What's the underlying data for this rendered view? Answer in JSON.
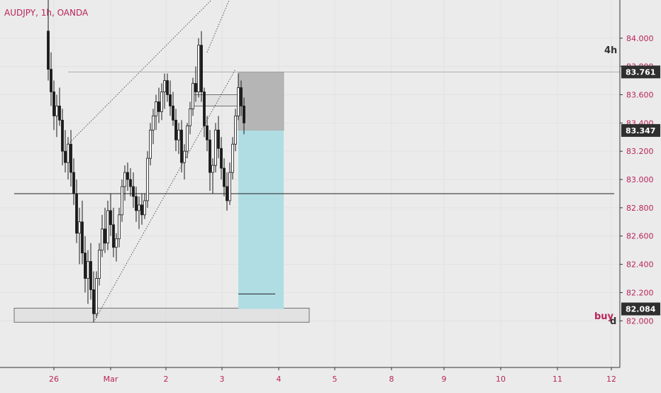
{
  "header": {
    "symbol": "AUDJPY, 1h, OANDA"
  },
  "colors": {
    "background": "#ebebeb",
    "text": "#b8245a",
    "candle": "#1a1a1a",
    "line": "#222222",
    "target_zone": "#b0dde3",
    "stop_zone": "#b5b5b5",
    "label_bg": "#2f2f2f",
    "label_text": "#ffffff"
  },
  "chart_data": {
    "type": "candlestick",
    "x_ticks": [
      "26",
      "Mar",
      "2",
      "3",
      "4",
      "5",
      "8",
      "9",
      "10",
      "11",
      "12"
    ],
    "y_ticks": [
      "84.000",
      "83.800",
      "83.600",
      "83.400",
      "83.200",
      "83.000",
      "82.800",
      "82.600",
      "82.400",
      "82.200",
      "82.000"
    ],
    "ylim": [
      81.67,
      84.27
    ],
    "grid": true,
    "ohlc_hourly": [
      [
        84.05,
        84.3,
        83.7,
        83.78
      ],
      [
        83.78,
        83.9,
        83.52,
        83.62
      ],
      [
        83.62,
        83.7,
        83.35,
        83.45
      ],
      [
        83.45,
        83.6,
        83.3,
        83.52
      ],
      [
        83.52,
        83.65,
        83.38,
        83.42
      ],
      [
        83.42,
        83.5,
        83.1,
        83.2
      ],
      [
        83.2,
        83.35,
        83.05,
        83.12
      ],
      [
        83.12,
        83.3,
        83.0,
        83.25
      ],
      [
        83.25,
        83.35,
        82.95,
        83.05
      ],
      [
        83.05,
        83.15,
        82.82,
        82.9
      ],
      [
        82.9,
        83.0,
        82.55,
        82.62
      ],
      [
        82.62,
        82.8,
        82.4,
        82.7
      ],
      [
        82.7,
        82.85,
        82.4,
        82.48
      ],
      [
        82.48,
        82.6,
        82.2,
        82.3
      ],
      [
        82.3,
        82.5,
        82.12,
        82.42
      ],
      [
        82.42,
        82.55,
        82.15,
        82.22
      ],
      [
        82.22,
        82.35,
        81.99,
        82.05
      ],
      [
        82.05,
        82.35,
        82.02,
        82.3
      ],
      [
        82.3,
        82.55,
        82.25,
        82.5
      ],
      [
        82.5,
        82.75,
        82.45,
        82.65
      ],
      [
        82.65,
        82.8,
        82.48,
        82.55
      ],
      [
        82.55,
        82.85,
        82.5,
        82.78
      ],
      [
        82.78,
        82.9,
        82.6,
        82.68
      ],
      [
        82.68,
        82.8,
        82.45,
        82.52
      ],
      [
        82.52,
        82.62,
        82.42,
        82.58
      ],
      [
        82.58,
        82.8,
        82.52,
        82.75
      ],
      [
        82.75,
        83.0,
        82.7,
        82.95
      ],
      [
        82.95,
        83.1,
        82.85,
        83.05
      ],
      [
        83.05,
        83.12,
        82.92,
        83.0
      ],
      [
        83.0,
        83.08,
        82.88,
        82.95
      ],
      [
        82.95,
        83.05,
        82.8,
        82.88
      ],
      [
        82.88,
        82.95,
        82.7,
        82.78
      ],
      [
        82.78,
        82.88,
        82.65,
        82.82
      ],
      [
        82.82,
        82.9,
        82.68,
        82.75
      ],
      [
        82.75,
        82.9,
        82.72,
        82.85
      ],
      [
        82.85,
        83.2,
        82.8,
        83.15
      ],
      [
        83.15,
        83.4,
        83.1,
        83.35
      ],
      [
        83.35,
        83.5,
        83.25,
        83.45
      ],
      [
        83.45,
        83.6,
        83.35,
        83.55
      ],
      [
        83.55,
        83.65,
        83.4,
        83.48
      ],
      [
        83.48,
        83.68,
        83.42,
        83.62
      ],
      [
        83.62,
        83.75,
        83.5,
        83.7
      ],
      [
        83.7,
        83.75,
        83.55,
        83.6
      ],
      [
        83.6,
        83.7,
        83.45,
        83.52
      ],
      [
        83.52,
        83.62,
        83.38,
        83.42
      ],
      [
        83.42,
        83.5,
        83.2,
        83.28
      ],
      [
        83.28,
        83.4,
        83.18,
        83.35
      ],
      [
        83.35,
        83.42,
        83.05,
        83.12
      ],
      [
        83.12,
        83.25,
        83.0,
        83.2
      ],
      [
        83.2,
        83.4,
        83.15,
        83.38
      ],
      [
        83.38,
        83.55,
        83.32,
        83.5
      ],
      [
        83.5,
        83.72,
        83.45,
        83.68
      ],
      [
        83.68,
        83.8,
        83.55,
        83.62
      ],
      [
        83.62,
        84.0,
        83.58,
        83.95
      ],
      [
        83.95,
        84.05,
        83.55,
        83.62
      ],
      [
        83.62,
        83.65,
        83.3,
        83.38
      ],
      [
        83.38,
        83.45,
        83.2,
        83.28
      ],
      [
        83.28,
        83.35,
        82.92,
        83.05
      ],
      [
        83.05,
        83.15,
        82.9,
        83.1
      ],
      [
        83.1,
        83.4,
        83.05,
        83.35
      ],
      [
        83.35,
        83.45,
        83.15,
        83.22
      ],
      [
        83.22,
        83.3,
        83.0,
        83.08
      ],
      [
        83.08,
        83.15,
        82.88,
        82.95
      ],
      [
        82.95,
        83.05,
        82.78,
        82.85
      ],
      [
        82.85,
        83.12,
        82.82,
        83.05
      ],
      [
        83.05,
        83.3,
        83.0,
        83.25
      ],
      [
        83.25,
        83.5,
        83.2,
        83.45
      ],
      [
        83.45,
        83.75,
        83.42,
        83.65
      ],
      [
        83.65,
        83.7,
        83.45,
        83.52
      ],
      [
        83.52,
        83.58,
        83.32,
        83.4
      ]
    ],
    "trendlines": [
      {
        "style": "dotted",
        "from": [
          7,
          83.25
        ],
        "to": [
          58,
          84.28
        ]
      },
      {
        "style": "dotted",
        "from": [
          16,
          81.99
        ],
        "to": [
          66,
          83.78
        ]
      },
      {
        "style": "dotted",
        "from": [
          56,
          83.9
        ],
        "to": [
          64,
          84.28
        ]
      }
    ],
    "horizontal_lines": [
      {
        "style": "solid-thin",
        "price": 83.761,
        "from_index": 7
      },
      {
        "style": "solid",
        "price": 82.9,
        "from_index": -12
      },
      {
        "style": "solid",
        "price": 82.19,
        "from_index": 67,
        "to_index": 80
      }
    ],
    "zones": [
      {
        "kind": "support_rect",
        "top": 82.09,
        "bottom": 81.99,
        "from_index": -12,
        "to_index": 92
      },
      {
        "kind": "resistance_rect",
        "top": 83.6,
        "bottom": 83.52,
        "from_index": 51,
        "to_index": 82
      }
    ],
    "position": {
      "type": "long",
      "from_index": 67,
      "to_index": 83,
      "stop": 83.761,
      "entry": 83.347,
      "target": 82.084
    },
    "price_labels": [
      {
        "value": "83.761",
        "price": 83.761
      },
      {
        "value": "83.347",
        "price": 83.347
      },
      {
        "value": "82.084",
        "price": 82.084
      }
    ],
    "annotations": [
      {
        "text": "4h",
        "price": 83.87,
        "anchor": "right"
      },
      {
        "text": "buy",
        "price": 82.19,
        "anchor": "right"
      },
      {
        "text": "d",
        "price": 82.15,
        "anchor": "right"
      }
    ]
  }
}
